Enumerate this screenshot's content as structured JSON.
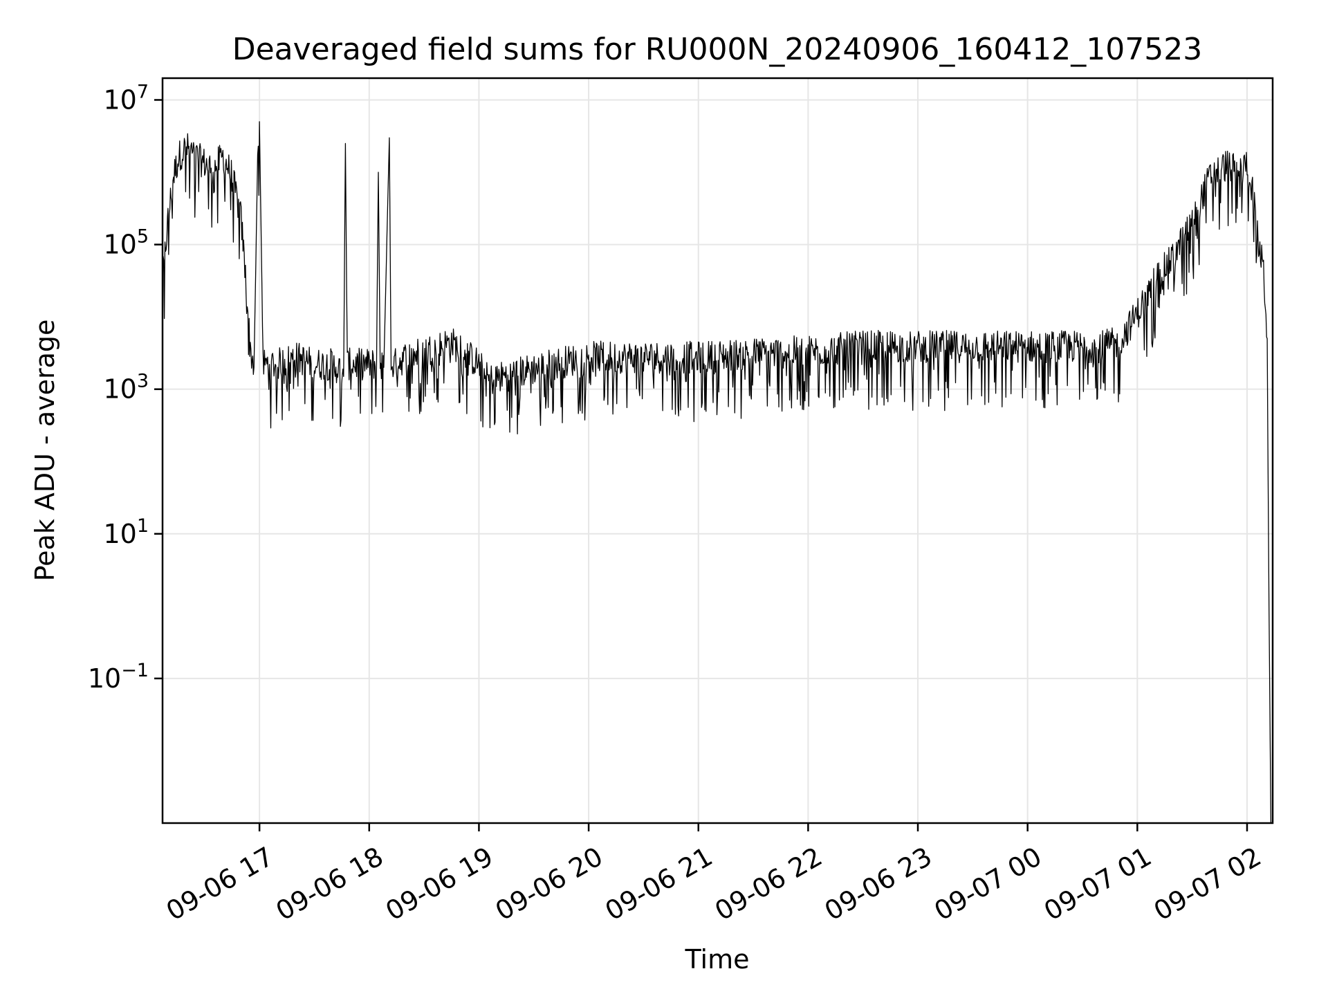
{
  "chart_data": {
    "type": "line",
    "title": "Deaveraged field sums for RU000N_20240906_160412_107523",
    "xlabel": "Time",
    "ylabel": "Peak ADU - average",
    "yscale": "log",
    "grid": true,
    "line_color": "#000000",
    "x_tick_labels": [
      "09-06 17",
      "09-06 18",
      "09-06 19",
      "09-06 20",
      "09-06 21",
      "09-06 22",
      "09-06 23",
      "09-07 00",
      "09-07 01",
      "09-07 02"
    ],
    "x_range": [
      "2024-09-06 16:07",
      "2024-09-07 02:14"
    ],
    "y_ticks": [
      {
        "value": 10000000.0,
        "base": "10",
        "exp": "7"
      },
      {
        "value": 100000.0,
        "base": "10",
        "exp": "5"
      },
      {
        "value": 1000.0,
        "base": "10",
        "exp": "3"
      },
      {
        "value": 10.0,
        "base": "10",
        "exp": "1"
      },
      {
        "value": 0.1,
        "base": "10",
        "exp": "−1"
      }
    ],
    "ylim": [
      0.001,
      20000000
    ],
    "series": [
      {
        "x": [
          "2024-09-06 16:07",
          "2024-09-06 16:10",
          "2024-09-06 16:13",
          "2024-09-06 16:16",
          "2024-09-06 16:20",
          "2024-09-06 16:25",
          "2024-09-06 16:30",
          "2024-09-06 16:35",
          "2024-09-06 16:40",
          "2024-09-06 16:45",
          "2024-09-06 16:50",
          "2024-09-06 16:53",
          "2024-09-06 16:55",
          "2024-09-06 16:57",
          "2024-09-06 16:59",
          "2024-09-06 17:00",
          "2024-09-06 17:02",
          "2024-09-06 17:10",
          "2024-09-06 17:20",
          "2024-09-06 17:30",
          "2024-09-06 17:40",
          "2024-09-06 17:46",
          "2024-09-06 17:47",
          "2024-09-06 17:48",
          "2024-09-06 17:50",
          "2024-09-06 18:00",
          "2024-09-06 18:04",
          "2024-09-06 18:05",
          "2024-09-06 18:06",
          "2024-09-06 18:08",
          "2024-09-06 18:11",
          "2024-09-06 18:12",
          "2024-09-06 18:14",
          "2024-09-06 18:20",
          "2024-09-06 18:30",
          "2024-09-06 18:45",
          "2024-09-06 19:00",
          "2024-09-06 19:05",
          "2024-09-06 19:20",
          "2024-09-06 19:40",
          "2024-09-06 20:00",
          "2024-09-06 20:30",
          "2024-09-06 21:00",
          "2024-09-06 21:30",
          "2024-09-06 22:00",
          "2024-09-06 22:30",
          "2024-09-06 23:00",
          "2024-09-06 23:30",
          "2024-09-07 00:00",
          "2024-09-07 00:20",
          "2024-09-07 00:40",
          "2024-09-07 00:50",
          "2024-09-07 01:00",
          "2024-09-07 01:10",
          "2024-09-07 01:20",
          "2024-09-07 01:30",
          "2024-09-07 01:40",
          "2024-09-07 01:50",
          "2024-09-07 01:55",
          "2024-09-07 02:00",
          "2024-09-07 02:03",
          "2024-09-07 02:06",
          "2024-09-07 02:09",
          "2024-09-07 02:11",
          "2024-09-07 02:12",
          "2024-09-07 02:13"
        ],
        "y": [
          30000,
          200000,
          800000,
          1500000,
          2000000,
          1500000,
          1200000,
          1000000,
          1500000,
          800000,
          200000,
          20000,
          3000,
          2000,
          1500000,
          5000000,
          2000,
          2000,
          2500,
          2000,
          2000,
          1500,
          2500000,
          2000,
          2000,
          2000,
          2000,
          1000000,
          2000,
          2000,
          3000000,
          2000,
          2000,
          2500,
          3000,
          4000,
          2000,
          1200,
          1500,
          2000,
          2500,
          2500,
          2500,
          2800,
          3000,
          3500,
          3500,
          3500,
          3500,
          3500,
          3500,
          4000,
          10000,
          30000,
          60000,
          200000,
          800000,
          1200000,
          800000,
          1200000,
          500000,
          100000,
          40000,
          5000,
          1,
          0.001
        ]
      }
    ]
  }
}
